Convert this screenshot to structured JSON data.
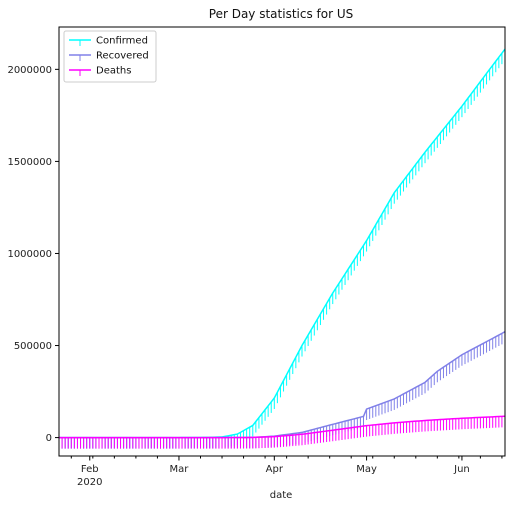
{
  "chart_data": {
    "type": "line",
    "title": "Per Day statistics for US",
    "xlabel": "date",
    "ylabel": "",
    "grid": false,
    "legend_position": "top-left",
    "x_axis": {
      "start": "2020-01-22",
      "end": "2020-06-15",
      "major_ticks": [
        {
          "date": "2020-02-01",
          "label": "Feb",
          "sublabel": "2020"
        },
        {
          "date": "2020-03-01",
          "label": "Mar",
          "sublabel": ""
        },
        {
          "date": "2020-04-01",
          "label": "Apr",
          "sublabel": ""
        },
        {
          "date": "2020-05-01",
          "label": "May",
          "sublabel": ""
        },
        {
          "date": "2020-06-01",
          "label": "Jun",
          "sublabel": ""
        }
      ]
    },
    "y_axis": {
      "min": -100000,
      "max": 2230000,
      "ticks": [
        {
          "value": 0,
          "label": "0"
        },
        {
          "value": 500000,
          "label": "500000"
        },
        {
          "value": 1000000,
          "label": "1000000"
        },
        {
          "value": 1500000,
          "label": "1500000"
        },
        {
          "value": 2000000,
          "label": "2000000"
        }
      ]
    },
    "series": [
      {
        "name": "Confirmed",
        "color": "#00ffff",
        "points": [
          [
            "2020-01-22",
            0
          ],
          [
            "2020-03-01",
            70
          ],
          [
            "2020-03-10",
            960
          ],
          [
            "2020-03-15",
            3500
          ],
          [
            "2020-03-20",
            19000
          ],
          [
            "2020-03-25",
            66000
          ],
          [
            "2020-04-01",
            215000
          ],
          [
            "2020-04-10",
            500000
          ],
          [
            "2020-04-20",
            785000
          ],
          [
            "2020-05-01",
            1070000
          ],
          [
            "2020-05-10",
            1330000
          ],
          [
            "2020-05-20",
            1550000
          ],
          [
            "2020-06-01",
            1800000
          ],
          [
            "2020-06-10",
            2000000
          ],
          [
            "2020-06-15",
            2110000
          ]
        ]
      },
      {
        "name": "Recovered",
        "color": "#8080e8",
        "points": [
          [
            "2020-01-22",
            0
          ],
          [
            "2020-03-20",
            150
          ],
          [
            "2020-03-25",
            500
          ],
          [
            "2020-04-01",
            8000
          ],
          [
            "2020-04-10",
            28000
          ],
          [
            "2020-04-20",
            72000
          ],
          [
            "2020-04-30",
            115000
          ],
          [
            "2020-05-01",
            155000
          ],
          [
            "2020-05-10",
            210000
          ],
          [
            "2020-05-20",
            300000
          ],
          [
            "2020-05-24",
            360000
          ],
          [
            "2020-06-01",
            450000
          ],
          [
            "2020-06-10",
            530000
          ],
          [
            "2020-06-15",
            575000
          ]
        ]
      },
      {
        "name": "Deaths",
        "color": "#ff00ff",
        "points": [
          [
            "2020-01-22",
            0
          ],
          [
            "2020-03-15",
            60
          ],
          [
            "2020-03-20",
            250
          ],
          [
            "2020-03-25",
            1100
          ],
          [
            "2020-04-01",
            5000
          ],
          [
            "2020-04-10",
            18000
          ],
          [
            "2020-04-20",
            40000
          ],
          [
            "2020-05-01",
            65000
          ],
          [
            "2020-05-10",
            80000
          ],
          [
            "2020-05-20",
            93000
          ],
          [
            "2020-06-01",
            105000
          ],
          [
            "2020-06-10",
            112000
          ],
          [
            "2020-06-15",
            116000
          ]
        ]
      }
    ]
  }
}
